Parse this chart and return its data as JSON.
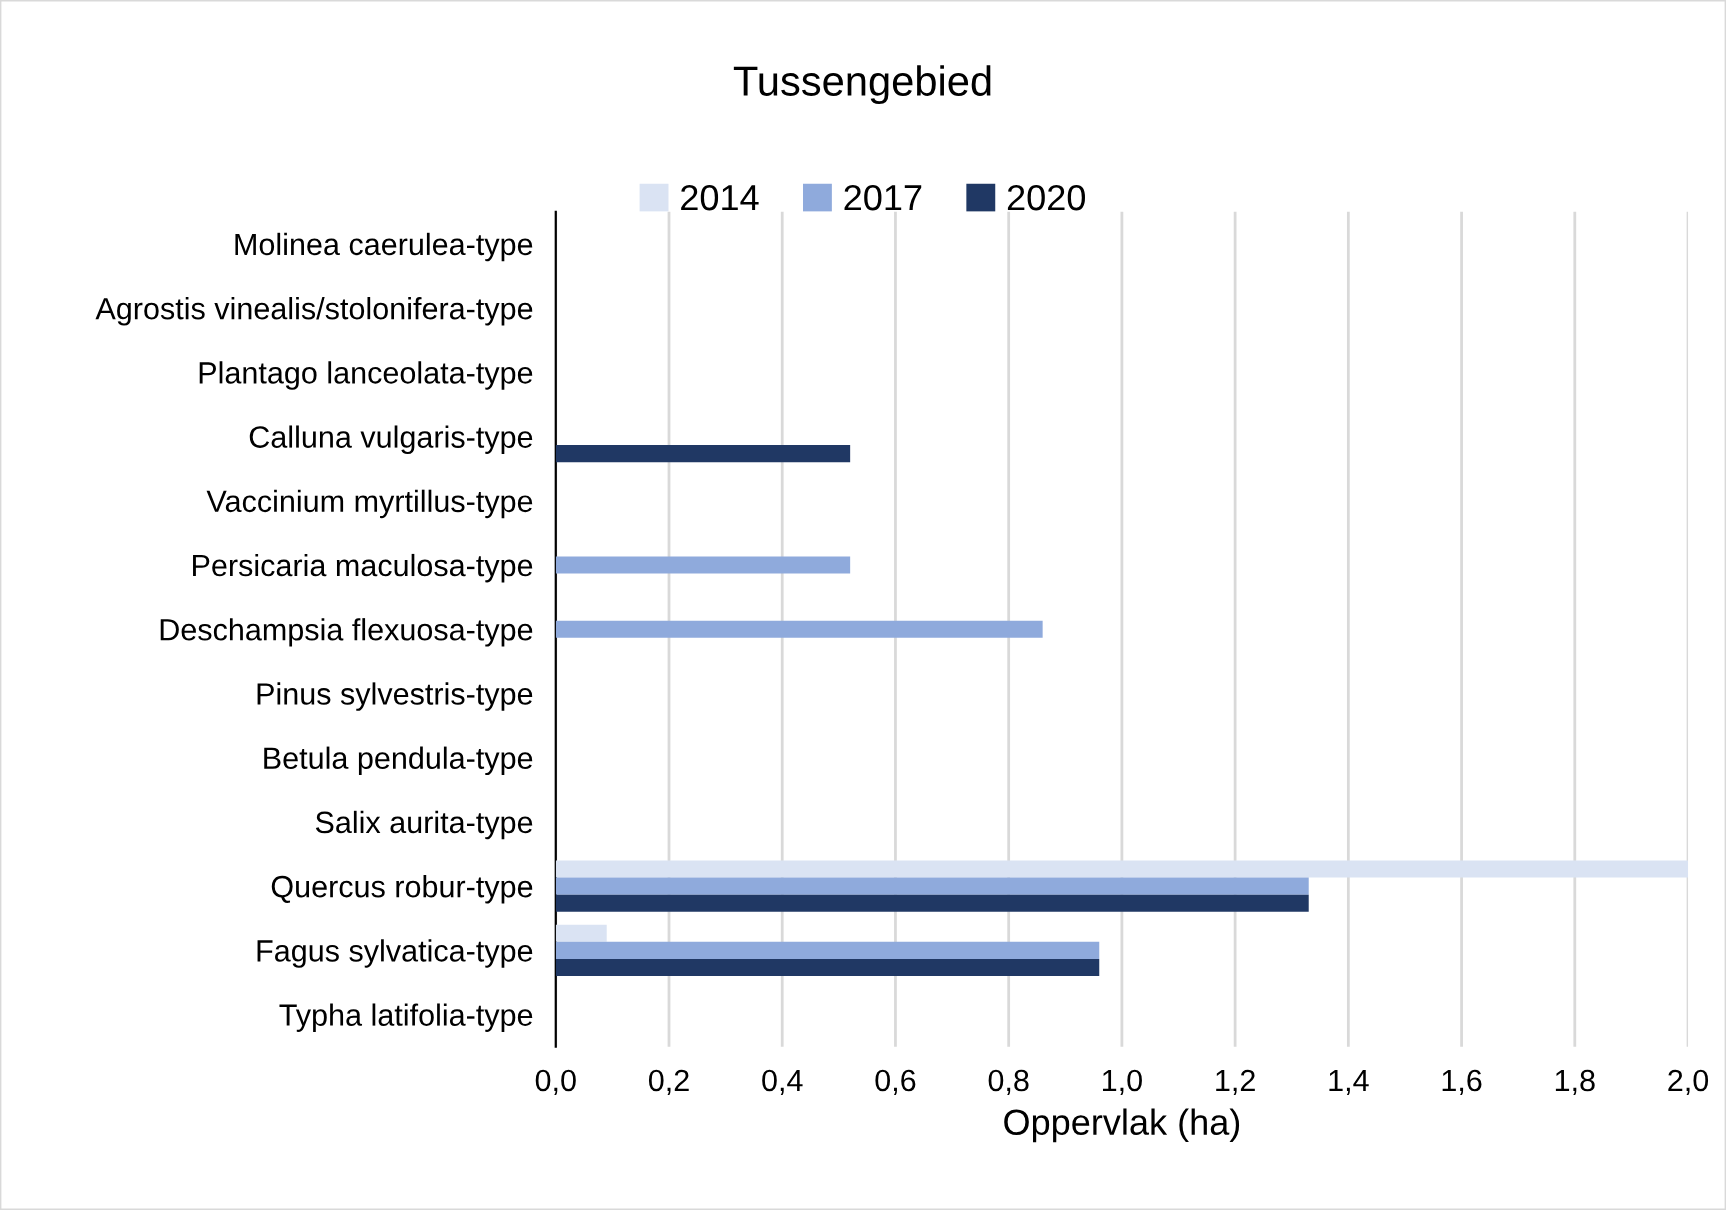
{
  "chart_data": {
    "type": "bar",
    "orientation": "horizontal",
    "title": "Tussengebied",
    "xlabel": "Oppervlak (ha)",
    "categories": [
      "Molinea caerulea-type",
      "Agrostis vinealis/stolonifera-type",
      "Plantago lanceolata-type",
      "Calluna vulgaris-type",
      "Vaccinium myrtillus-type",
      "Persicaria maculosa-type",
      "Deschampsia flexuosa-type",
      "Pinus sylvestris-type",
      "Betula pendula-type",
      "Salix aurita-type",
      "Quercus robur-type",
      "Fagus sylvatica-type",
      "Typha latifolia-type"
    ],
    "series": [
      {
        "name": "2014",
        "color": "#dae3f3",
        "values": [
          null,
          null,
          null,
          null,
          null,
          null,
          null,
          null,
          null,
          null,
          2.0,
          0.09,
          null
        ]
      },
      {
        "name": "2017",
        "color": "#8faadc",
        "values": [
          null,
          null,
          null,
          null,
          null,
          0.52,
          0.86,
          null,
          null,
          null,
          1.33,
          0.96,
          null
        ]
      },
      {
        "name": "2020",
        "color": "#203864",
        "values": [
          null,
          null,
          null,
          0.52,
          null,
          null,
          null,
          null,
          null,
          null,
          1.33,
          0.96,
          null
        ]
      }
    ],
    "xlim": [
      0,
      2.0
    ],
    "xticks": [
      {
        "value": 0,
        "label": "0,0"
      },
      {
        "value": 0.2,
        "label": "0,2"
      },
      {
        "value": 0.4,
        "label": "0,4"
      },
      {
        "value": 0.6,
        "label": "0,6"
      },
      {
        "value": 0.8,
        "label": "0,8"
      },
      {
        "value": 1.0,
        "label": "1,0"
      },
      {
        "value": 1.2,
        "label": "1,2"
      },
      {
        "value": 1.4,
        "label": "1,4"
      },
      {
        "value": 1.6,
        "label": "1,6"
      },
      {
        "value": 1.8,
        "label": "1,8"
      },
      {
        "value": 2.0,
        "label": "2,0"
      }
    ],
    "grid": "x",
    "legend": "top"
  }
}
